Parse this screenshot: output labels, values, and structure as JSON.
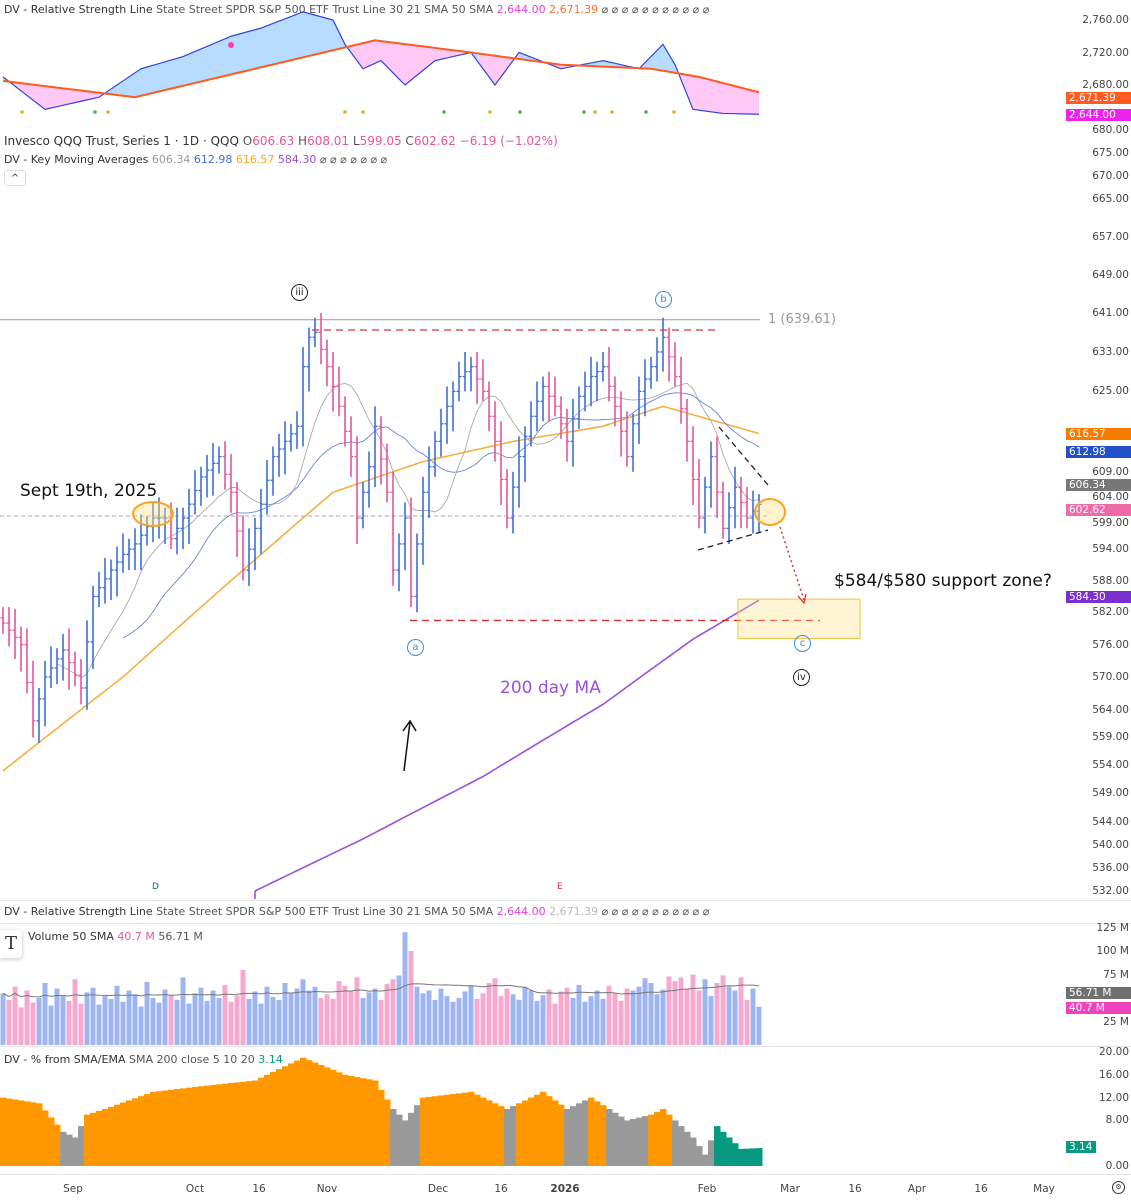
{
  "rs_panel": {
    "title": "DV - Relative Strength Line",
    "params": "State Street SPDR S&P 500 ETF Trust Line 30 21 SMA 50 SMA",
    "rs_value": "2,644.00",
    "sma_value": "2,671.39",
    "dots": "⌀ ⌀ ⌀ ⌀ ⌀ ⌀ ⌀ ⌀ ⌀ ⌀ ⌀",
    "axis": [
      "2,760.00",
      "2,720.00",
      "2,680.00"
    ],
    "axis_values": [
      2760,
      2720,
      2680
    ],
    "rs": [
      [
        0,
        2690
      ],
      [
        7,
        2650
      ],
      [
        16,
        2665
      ],
      [
        23,
        2700
      ],
      [
        30,
        2715
      ],
      [
        38,
        2740
      ],
      [
        43,
        2750
      ],
      [
        50,
        2770
      ],
      [
        55,
        2760
      ],
      [
        57,
        2730
      ],
      [
        60,
        2700
      ],
      [
        63,
        2710
      ],
      [
        67,
        2680
      ],
      [
        72,
        2710
      ],
      [
        78,
        2720
      ],
      [
        82,
        2680
      ],
      [
        86,
        2720
      ],
      [
        93,
        2700
      ],
      [
        100,
        2710
      ],
      [
        106,
        2700
      ],
      [
        110,
        2730
      ],
      [
        112,
        2705
      ],
      [
        115,
        2650
      ],
      [
        120,
        2645
      ],
      [
        126,
        2644
      ]
    ],
    "sma": [
      [
        0,
        2685
      ],
      [
        22,
        2665
      ],
      [
        42,
        2700
      ],
      [
        62,
        2735
      ],
      [
        78,
        2720
      ],
      [
        93,
        2705
      ],
      [
        108,
        2700
      ],
      [
        116,
        2690
      ],
      [
        126,
        2671
      ]
    ]
  },
  "price_panel": {
    "title": "Invesco QQQ Trust, Series 1 · 1D · QQQ",
    "open_label": "O",
    "open": "606.63",
    "high_label": "H",
    "high": "608.01",
    "low_label": "L",
    "low": "599.05",
    "close_label": "C",
    "close": "602.62",
    "change": "−6.19 (−1.02%)",
    "ma_title": "DV - Key Moving Averages",
    "ma_values": [
      "606.34",
      "612.98",
      "616.57",
      "584.30"
    ],
    "ma_dots": "⌀ ⌀ ⌀ ⌀ ⌀ ⌀ ⌀",
    "collapse": "^",
    "badges": {
      "sma50": "616.57",
      "sma21": "612.98",
      "sma10": "606.34",
      "close": "602.62",
      "sma200": "584.30"
    },
    "axis": [
      "680.00",
      "675.00",
      "670.00",
      "665.00",
      "657.00",
      "649.00",
      "641.00",
      "633.00",
      "625.00",
      "609.00",
      "604.00",
      "599.00",
      "594.00",
      "588.00",
      "582.00",
      "576.00",
      "570.00",
      "564.00",
      "559.00",
      "554.00",
      "549.00",
      "544.00",
      "540.00",
      "536.00",
      "532.00"
    ]
  },
  "annotations": {
    "fib": "1 (639.61)",
    "sept": "Sept 19th, 2025",
    "support": "$584/$580 support zone?",
    "ma200": "200 day MA",
    "wave_iii": "iii",
    "wave_b": "b",
    "wave_a": "a",
    "wave_c": "c",
    "wave_iv": "iv",
    "marker_d": "D",
    "marker_e": "E"
  },
  "volume_panel": {
    "title": "Volume 50 SMA",
    "vol": "40.7 M",
    "sma": "56.71 M",
    "axis": [
      "125 M",
      "100 M",
      "75 M",
      "25 M"
    ],
    "axis_values": [
      125,
      100,
      75,
      25
    ]
  },
  "pct_panel": {
    "title": "DV - % from SMA/EMA",
    "params": "SMA 200 close 5 10 20",
    "value": "3.14",
    "axis": [
      "20.00",
      "16.00",
      "12.00",
      "8.00",
      "0.00"
    ],
    "axis_values": [
      20,
      16,
      12,
      8,
      0
    ]
  },
  "x_axis": [
    "Sep",
    "Oct",
    "16",
    "Nov",
    "Dec",
    "16",
    "2026",
    "Feb",
    "Mar",
    "16",
    "Apr",
    "16",
    "May"
  ],
  "colors": {
    "up": "#3f6fd8",
    "down": "#e8559a",
    "sma50": "#f5b041",
    "sma200": "#9b4fe0",
    "sma21": "#6b85d8",
    "sma10": "#aaaaaa",
    "pct": "#ff9800",
    "pct_gray": "#999999",
    "pct_teal": "#089981"
  },
  "chart_data": {
    "type": "line",
    "bars": 127,
    "close_keys": [
      [
        0,
        580
      ],
      [
        3,
        576
      ],
      [
        5,
        562
      ],
      [
        7,
        570
      ],
      [
        10,
        575
      ],
      [
        13,
        568
      ],
      [
        15,
        585
      ],
      [
        18,
        590
      ],
      [
        20,
        593
      ],
      [
        22,
        595
      ],
      [
        25,
        600
      ],
      [
        27,
        600
      ],
      [
        28,
        596
      ],
      [
        30,
        600
      ],
      [
        33,
        608
      ],
      [
        36,
        612
      ],
      [
        38,
        605
      ],
      [
        40,
        590
      ],
      [
        42,
        598
      ],
      [
        45,
        612
      ],
      [
        47,
        615
      ],
      [
        49,
        618
      ],
      [
        50,
        630
      ],
      [
        51,
        636
      ],
      [
        52,
        637
      ],
      [
        54,
        630
      ],
      [
        56,
        622
      ],
      [
        58,
        612
      ],
      [
        59,
        600
      ],
      [
        61,
        610
      ],
      [
        62,
        618
      ],
      [
        64,
        605
      ],
      [
        65,
        590
      ],
      [
        67,
        600
      ],
      [
        68,
        585
      ],
      [
        70,
        605
      ],
      [
        72,
        615
      ],
      [
        74,
        622
      ],
      [
        76,
        628
      ],
      [
        78,
        630
      ],
      [
        80,
        625
      ],
      [
        82,
        615
      ],
      [
        84,
        600
      ],
      [
        86,
        612
      ],
      [
        88,
        620
      ],
      [
        90,
        626
      ],
      [
        92,
        622
      ],
      [
        94,
        615
      ],
      [
        96,
        624
      ],
      [
        98,
        628
      ],
      [
        100,
        630
      ],
      [
        102,
        622
      ],
      [
        104,
        612
      ],
      [
        106,
        625
      ],
      [
        108,
        630
      ],
      [
        110,
        636
      ],
      [
        112,
        628
      ],
      [
        114,
        615
      ],
      [
        116,
        600
      ],
      [
        118,
        612
      ],
      [
        120,
        598
      ],
      [
        122,
        606
      ],
      [
        124,
        600
      ],
      [
        126,
        602.62
      ]
    ],
    "sma50_keys": [
      [
        0,
        553
      ],
      [
        20,
        570
      ],
      [
        40,
        590
      ],
      [
        55,
        605
      ],
      [
        70,
        611
      ],
      [
        85,
        615
      ],
      [
        100,
        618
      ],
      [
        110,
        622
      ],
      [
        126,
        616.57
      ]
    ],
    "sma200_keys": [
      [
        42,
        532
      ],
      [
        60,
        541
      ],
      [
        80,
        552
      ],
      [
        100,
        565
      ],
      [
        115,
        577
      ],
      [
        126,
        584.3
      ]
    ],
    "volume": [
      55,
      48,
      62,
      40,
      58,
      45,
      50,
      66,
      42,
      60,
      52,
      47,
      70,
      44,
      56,
      61,
      43,
      52,
      49,
      63,
      46,
      58,
      54,
      41,
      67,
      50,
      45,
      59,
      53,
      48,
      72,
      44,
      55,
      61,
      47,
      58,
      50,
      64,
      46,
      53,
      80,
      49,
      57,
      44,
      62,
      51,
      48,
      66,
      55,
      60,
      70,
      58,
      62,
      50,
      54,
      49,
      68,
      63,
      58,
      72,
      50,
      56,
      60,
      48,
      65,
      70,
      74,
      120,
      100,
      62,
      55,
      58,
      48,
      60,
      52,
      46,
      50,
      57,
      63,
      49,
      55,
      66,
      71,
      52,
      60,
      54,
      48,
      62,
      58,
      47,
      53,
      59,
      44,
      57,
      61,
      50,
      64,
      46,
      52,
      58,
      49,
      63,
      55,
      47,
      60,
      58,
      62,
      71,
      66,
      54,
      59,
      73,
      68,
      72,
      60,
      75,
      58,
      70,
      52,
      66,
      74,
      62,
      58,
      72,
      48,
      60,
      40.7
    ],
    "pct_keys": [
      [
        0,
        12,
        "o"
      ],
      [
        6,
        11,
        "o"
      ],
      [
        10,
        6,
        "g"
      ],
      [
        12,
        5,
        "g"
      ],
      [
        14,
        9,
        "o"
      ],
      [
        17,
        10,
        "o"
      ],
      [
        25,
        13,
        "o"
      ],
      [
        33,
        14,
        "o"
      ],
      [
        42,
        15,
        "o"
      ],
      [
        50,
        19,
        "o"
      ],
      [
        57,
        16,
        "o"
      ],
      [
        62,
        15,
        "o"
      ],
      [
        65,
        10,
        "g"
      ],
      [
        67,
        8,
        "g"
      ],
      [
        70,
        12,
        "o"
      ],
      [
        78,
        13,
        "o"
      ],
      [
        84,
        10,
        "g"
      ],
      [
        86,
        11,
        "o"
      ],
      [
        90,
        13,
        "o"
      ],
      [
        94,
        10,
        "g"
      ],
      [
        98,
        12,
        "o"
      ],
      [
        101,
        10,
        "g"
      ],
      [
        104,
        8,
        "g"
      ],
      [
        108,
        9,
        "o"
      ],
      [
        110,
        10,
        "o"
      ],
      [
        112,
        8,
        "g"
      ],
      [
        115,
        5,
        "g"
      ],
      [
        117,
        2,
        "g"
      ],
      [
        119,
        7,
        "t"
      ],
      [
        121,
        5,
        "t"
      ],
      [
        123,
        3,
        "t"
      ],
      [
        126,
        3.14,
        "t"
      ]
    ]
  }
}
